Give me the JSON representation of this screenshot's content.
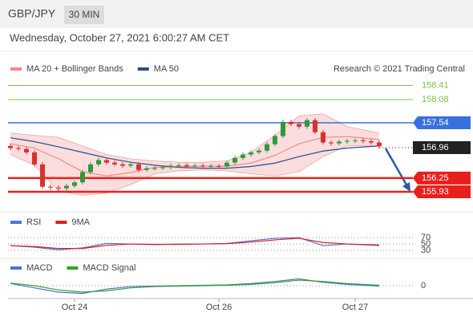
{
  "header": {
    "symbol": "GBP/JPY",
    "interval": "30 MIN",
    "timestamp": "Wednesday, October 27, 2021 6:00:27 AM CET"
  },
  "chart_data": [
    {
      "type": "candlestick",
      "credit": "Research © 2021 Trading Central",
      "categories": [
        null,
        null,
        null,
        null,
        null,
        null,
        null,
        null,
        "Oct 24",
        null,
        null,
        null,
        null,
        null,
        null,
        null,
        null,
        null,
        null,
        null,
        null,
        null,
        null,
        null,
        null,
        null,
        "Oct 26",
        null,
        null,
        null,
        null,
        null,
        null,
        null,
        null,
        null,
        null,
        null,
        null,
        null,
        null,
        null,
        null,
        "Oct 27",
        null,
        null,
        null
      ],
      "open": [
        157.0,
        156.95,
        156.93,
        156.85,
        156.57,
        156.05,
        156.03,
        156.01,
        156.07,
        156.15,
        156.39,
        156.57,
        156.67,
        156.61,
        156.57,
        156.54,
        156.57,
        156.44,
        156.48,
        156.48,
        156.5,
        156.54,
        156.55,
        156.52,
        156.54,
        156.52,
        156.53,
        156.52,
        156.61,
        156.72,
        156.8,
        156.85,
        156.89,
        157.04,
        157.23,
        157.56,
        157.51,
        157.45,
        157.6,
        157.32,
        157.08,
        157.06,
        157.1,
        157.12,
        157.13,
        157.11,
        157.08
      ],
      "high": [
        157.06,
        157.0,
        156.98,
        156.9,
        156.62,
        156.1,
        156.08,
        156.12,
        156.2,
        156.44,
        156.62,
        156.72,
        156.72,
        156.66,
        156.62,
        156.62,
        156.62,
        156.53,
        156.53,
        156.55,
        156.59,
        156.6,
        156.6,
        156.59,
        156.59,
        156.58,
        156.58,
        156.66,
        156.77,
        156.85,
        156.9,
        156.94,
        157.09,
        157.28,
        157.61,
        157.61,
        157.56,
        157.65,
        157.65,
        157.37,
        157.13,
        157.15,
        157.17,
        157.18,
        157.18,
        157.16,
        157.13
      ],
      "low": [
        156.9,
        156.88,
        156.8,
        156.52,
        156.0,
        155.97,
        155.96,
        155.96,
        156.02,
        156.1,
        156.34,
        156.52,
        156.56,
        156.52,
        156.49,
        156.49,
        156.39,
        156.39,
        156.43,
        156.43,
        156.45,
        156.49,
        156.47,
        156.47,
        156.47,
        156.47,
        156.47,
        156.47,
        156.56,
        156.67,
        156.75,
        156.8,
        156.84,
        156.99,
        157.18,
        157.46,
        157.4,
        157.4,
        157.27,
        157.03,
        157.01,
        157.01,
        157.05,
        157.07,
        157.06,
        157.03,
        156.94
      ],
      "close": [
        156.95,
        156.93,
        156.85,
        156.57,
        156.05,
        156.03,
        156.01,
        156.07,
        156.15,
        156.39,
        156.57,
        156.67,
        156.61,
        156.57,
        156.54,
        156.57,
        156.44,
        156.48,
        156.48,
        156.5,
        156.54,
        156.55,
        156.52,
        156.54,
        156.52,
        156.53,
        156.52,
        156.61,
        156.72,
        156.8,
        156.85,
        156.89,
        157.04,
        157.23,
        157.56,
        157.51,
        157.45,
        157.6,
        157.32,
        157.08,
        157.06,
        157.1,
        157.12,
        157.13,
        157.11,
        157.08,
        156.99
      ],
      "up_color": "#2e9a3a",
      "down_color": "#d93030",
      "ylim": [
        155.5,
        159.0
      ],
      "x": [
        0,
        3,
        6,
        9,
        12,
        15,
        18,
        21,
        24,
        27,
        30,
        33,
        36,
        39,
        42,
        46
      ],
      "series": [
        {
          "name": "MA 20 + Bollinger Bands",
          "color": "#f08a8a",
          "band_color": "#fbd4d4",
          "values": [
            157.05,
            156.95,
            156.7,
            156.4,
            156.3,
            156.38,
            156.5,
            156.52,
            156.53,
            156.53,
            156.6,
            156.78,
            157.05,
            157.2,
            157.22,
            157.15
          ],
          "upper": [
            157.3,
            157.25,
            157.2,
            157.0,
            156.8,
            156.7,
            156.65,
            156.62,
            156.62,
            156.65,
            156.85,
            157.25,
            157.7,
            157.75,
            157.45,
            157.3
          ],
          "lower": [
            156.8,
            156.55,
            155.95,
            155.85,
            155.9,
            156.1,
            156.35,
            156.42,
            156.44,
            156.42,
            156.35,
            156.3,
            156.4,
            156.75,
            157.0,
            157.0
          ]
        },
        {
          "name": "MA 50",
          "color": "#2a4d8f",
          "values": [
            157.19,
            157.1,
            156.98,
            156.85,
            156.72,
            156.62,
            156.55,
            156.5,
            156.48,
            156.48,
            156.52,
            156.6,
            156.75,
            156.88,
            156.95,
            157.0
          ]
        }
      ],
      "levels": [
        {
          "value": 158.41,
          "color": "#7cc24a",
          "style": "plain"
        },
        {
          "value": 158.08,
          "color": "#7cc24a",
          "style": "plain"
        },
        {
          "value": 157.54,
          "color": "#3a6fe0",
          "style": "box"
        },
        {
          "value": 156.96,
          "color": "#222222",
          "style": "current"
        },
        {
          "value": 156.25,
          "color": "#e8201c",
          "style": "box"
        },
        {
          "value": 155.93,
          "color": "#e8201c",
          "style": "box"
        }
      ]
    },
    {
      "type": "line",
      "ylim": [
        15,
        98
      ],
      "yticks": [
        70,
        50,
        30
      ],
      "x": [
        0,
        3,
        6,
        9,
        12,
        15,
        18,
        21,
        24,
        27,
        30,
        33,
        36,
        39,
        42,
        46
      ],
      "series": [
        {
          "name": "RSI",
          "color": "#4a72d8",
          "values": [
            45,
            40,
            32,
            38,
            52,
            50,
            48,
            50,
            50,
            52,
            60,
            68,
            70,
            45,
            50,
            45
          ]
        },
        {
          "name": "9MA",
          "color": "#e02020",
          "values": [
            45,
            42,
            36,
            36,
            46,
            50,
            49,
            49,
            50,
            51,
            56,
            63,
            68,
            55,
            50,
            47
          ]
        }
      ]
    },
    {
      "type": "line",
      "ylim": [
        -0.3,
        0.3
      ],
      "yticks": [
        0
      ],
      "x": [
        0,
        3,
        6,
        9,
        12,
        15,
        18,
        21,
        24,
        27,
        30,
        33,
        36,
        39,
        42,
        46
      ],
      "series": [
        {
          "name": "MACD",
          "color": "#4a72d8",
          "values": [
            0.05,
            -0.05,
            -0.15,
            -0.18,
            -0.08,
            -0.02,
            -0.01,
            0.0,
            0.01,
            0.02,
            0.05,
            0.1,
            0.16,
            0.08,
            0.03,
            -0.01
          ]
        },
        {
          "name": "MACD Signal",
          "color": "#3aa02a",
          "values": [
            0.06,
            0.0,
            -0.1,
            -0.15,
            -0.12,
            -0.05,
            -0.02,
            -0.01,
            0.0,
            0.01,
            0.03,
            0.07,
            0.13,
            0.1,
            0.05,
            0.01
          ]
        }
      ]
    }
  ]
}
